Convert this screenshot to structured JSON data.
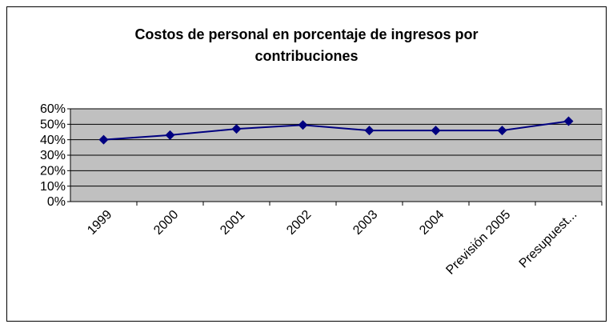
{
  "chart_data": {
    "type": "line",
    "title": "Costos de personal en porcentaje de ingresos por contribuciones",
    "categories": [
      "1999",
      "2000",
      "2001",
      "2002",
      "2003",
      "2004",
      "Previsión 2005",
      "Presupuest..."
    ],
    "series": [
      {
        "name": "Costos de personal",
        "color": "#000080",
        "values": [
          40,
          43,
          47,
          49.5,
          46,
          46,
          46,
          52
        ]
      }
    ],
    "ylim": [
      0,
      60
    ],
    "yticks": [
      {
        "value": 0,
        "label": "0%"
      },
      {
        "value": 10,
        "label": "10%"
      },
      {
        "value": 20,
        "label": "20%"
      },
      {
        "value": 30,
        "label": "30%"
      },
      {
        "value": 40,
        "label": "40%"
      },
      {
        "value": 50,
        "label": "50%"
      },
      {
        "value": 60,
        "label": "60%"
      }
    ],
    "grid": true,
    "plot_background": "#c0c0c0"
  }
}
